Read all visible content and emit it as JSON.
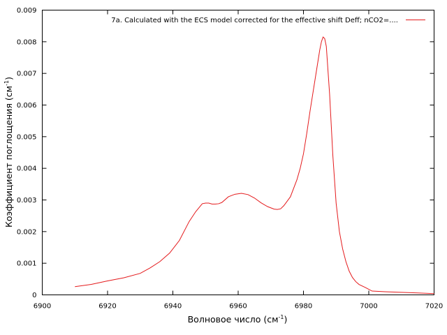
{
  "chart_data": {
    "type": "line",
    "title": "",
    "xlabel": "Волновое число",
    "xlabel_unit": "(см",
    "xlabel_unit_sup": "-1",
    "xlabel_unit_close": ")",
    "ylabel": "Коэффициент поглощения",
    "ylabel_unit": "(см",
    "ylabel_unit_sup": "-1",
    "ylabel_unit_close": ")",
    "xlim": [
      6900,
      7020
    ],
    "ylim": [
      0,
      0.009
    ],
    "x_ticks": [
      "6900",
      "6920",
      "6940",
      "6960",
      "6980",
      "7000",
      "7020"
    ],
    "y_ticks": [
      "0",
      "0.001",
      "0.002",
      "0.003",
      "0.004",
      "0.005",
      "0.006",
      "0.007",
      "0.008",
      "0.009"
    ],
    "grid": false,
    "legend_position": "top-right",
    "line_color": "#e41a1c",
    "series": [
      {
        "name": "7a. Calculated with the ECS model corrected for the effective shift Deff;  nCO2=....",
        "x": [
          6910,
          6915,
          6920,
          6925,
          6930,
          6933,
          6936,
          6939,
          6942,
          6945,
          6947,
          6949,
          6950,
          6951,
          6952,
          6953,
          6954,
          6955,
          6957,
          6959,
          6961,
          6963,
          6965,
          6967,
          6969,
          6971,
          6972,
          6973,
          6974,
          6976,
          6978,
          6979,
          6980,
          6981,
          6982,
          6983,
          6984,
          6985,
          6985.5,
          6986,
          6986.5,
          6987,
          6988,
          6989,
          6990,
          6991,
          6992,
          6993,
          6994,
          6995,
          6996,
          6997,
          6999,
          7001,
          7005,
          7010,
          7015,
          7020
        ],
        "y": [
          0.00026,
          0.00033,
          0.00044,
          0.00054,
          0.00068,
          0.00085,
          0.00105,
          0.00132,
          0.00172,
          0.00232,
          0.00263,
          0.00288,
          0.0029,
          0.0029,
          0.00287,
          0.00287,
          0.00288,
          0.00292,
          0.0031,
          0.00318,
          0.00321,
          0.00317,
          0.00306,
          0.00291,
          0.00279,
          0.00271,
          0.0027,
          0.00272,
          0.00282,
          0.0031,
          0.00364,
          0.004,
          0.00446,
          0.0051,
          0.0058,
          0.00645,
          0.0071,
          0.00775,
          0.008,
          0.00815,
          0.0081,
          0.00785,
          0.00635,
          0.0044,
          0.0029,
          0.002,
          0.00145,
          0.00105,
          0.00075,
          0.00055,
          0.00042,
          0.00033,
          0.00023,
          0.00012,
          0.0001,
          8e-05,
          6e-05,
          4e-05
        ]
      }
    ]
  }
}
